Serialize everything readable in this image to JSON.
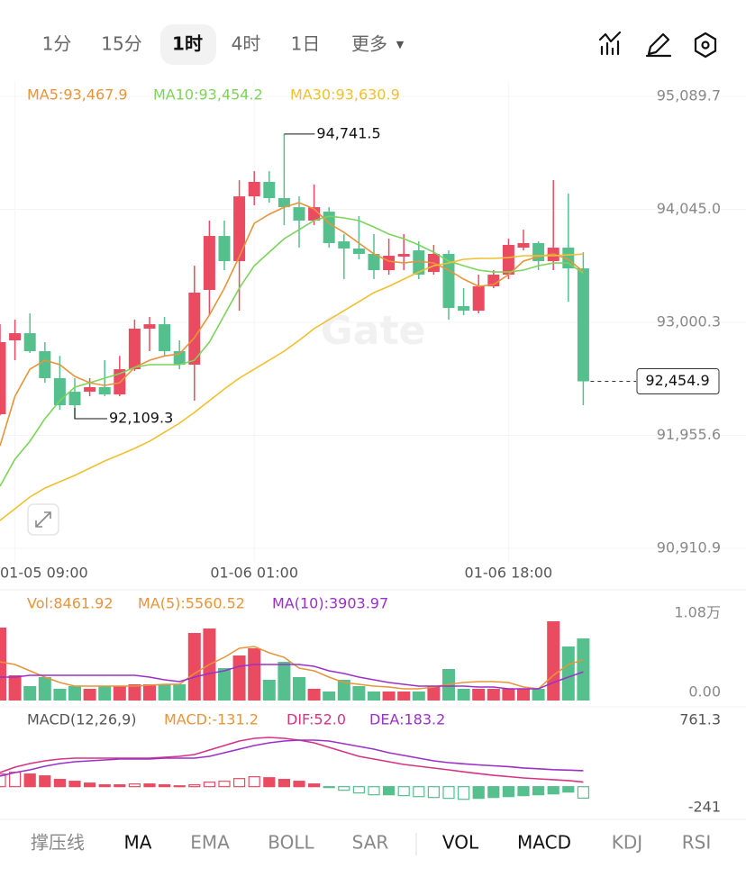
{
  "toolbar": {
    "intervals": [
      "1分",
      "15分",
      "1时",
      "4时",
      "1日"
    ],
    "active": 2,
    "more": "更多"
  },
  "watermark": "Gate",
  "chart_data": [
    {
      "type": "candlestick",
      "up_color": "#ea4b61",
      "down_color": "#55c08e",
      "categories": [
        null,
        "01-05 09:00",
        null,
        null,
        null,
        null,
        null,
        null,
        null,
        null,
        null,
        null,
        null,
        null,
        null,
        null,
        null,
        "01-06 01:00",
        null,
        null,
        null,
        null,
        null,
        null,
        null,
        null,
        null,
        null,
        null,
        null,
        null,
        null,
        null,
        null,
        "01-06 18:00",
        null,
        null,
        null,
        null,
        null
      ],
      "open": [
        92151,
        92834,
        92900,
        92734,
        92484,
        92359,
        92359,
        92401,
        92334,
        92567,
        92942,
        92983,
        92734,
        92609,
        93300,
        93799,
        93566,
        94165,
        94299,
        94149,
        94065,
        93941,
        94024,
        93749,
        93683,
        93633,
        93483,
        93608,
        93666,
        93466,
        93633,
        93150,
        93108,
        93333,
        93441,
        93691,
        93733,
        93566,
        93691,
        93499
      ],
      "high": [
        92983,
        93025,
        93083,
        92817,
        92690,
        92484,
        92484,
        92650,
        92690,
        93025,
        93050,
        93050,
        92834,
        93524,
        93941,
        93941,
        94315,
        94398,
        94398,
        94741.5,
        94165,
        94274,
        94065,
        93816,
        93982,
        93816,
        93774,
        93816,
        93749,
        93716,
        93666,
        93316,
        93441,
        93483,
        93774,
        93857,
        93749,
        94315,
        94190,
        93649
      ],
      "low": [
        92140,
        92650,
        92717,
        92442,
        92193,
        92109.3,
        92317,
        92317,
        92317,
        92550,
        92734,
        92690,
        92567,
        92276,
        93067,
        93483,
        93108,
        94082,
        94107,
        93899,
        93691,
        93899,
        93691,
        93400,
        93583,
        93400,
        93441,
        93483,
        93400,
        93441,
        93025,
        93067,
        93083,
        93316,
        93400,
        93666,
        93483,
        93483,
        93191,
        92234
      ],
      "close": [
        92817,
        92900,
        92734,
        92484,
        92234,
        92234,
        92401,
        92334,
        92567,
        92942,
        92983,
        92734,
        92609,
        93275,
        93799,
        93566,
        94165,
        94299,
        94149,
        94065,
        93941,
        94065,
        93733,
        93683,
        93633,
        93483,
        93616,
        93633,
        93441,
        93633,
        93133,
        93108,
        93333,
        93441,
        93716,
        93733,
        93566,
        93691,
        93499,
        92454.9
      ],
      "ma_series": [
        {
          "name": "MA5:93,467.9",
          "color": "#e8943a",
          "values": [
            91860,
            92317,
            92567,
            92650,
            92609,
            92501,
            92442,
            92417,
            92442,
            92584,
            92650,
            92690,
            92709,
            92858,
            93067,
            93316,
            93608,
            93916,
            93999,
            94065,
            94107,
            94049,
            93916,
            93832,
            93733,
            93633,
            93566,
            93549,
            93566,
            93549,
            93483,
            93400,
            93333,
            93350,
            93441,
            93566,
            93608,
            93633,
            93583,
            93467.9
          ]
        },
        {
          "name": "MA10:93,454.2",
          "color": "#7dd35b",
          "values": [
            91485,
            91735,
            91901,
            92109,
            92276,
            92401,
            92442,
            92484,
            92526,
            92584,
            92609,
            92609,
            92609,
            92650,
            92817,
            93067,
            93316,
            93524,
            93649,
            93774,
            93857,
            93941,
            93982,
            93966,
            93941,
            93882,
            93816,
            93774,
            93716,
            93649,
            93566,
            93524,
            93483,
            93466,
            93466,
            93483,
            93524,
            93549,
            93549,
            93454.2
          ]
        },
        {
          "name": "MA30:93,630.9",
          "color": "#f0c030",
          "values": [
            91169,
            91277,
            91385,
            91468,
            91527,
            91585,
            91652,
            91718,
            91776,
            91835,
            91901,
            91984,
            92068,
            92168,
            92276,
            92384,
            92484,
            92567,
            92650,
            92734,
            92834,
            92942,
            93025,
            93108,
            93191,
            93275,
            93333,
            93400,
            93466,
            93524,
            93549,
            93583,
            93591,
            93591,
            93599,
            93616,
            93616,
            93616,
            93624,
            93630.9
          ]
        }
      ],
      "ylim": [
        90910.9,
        95089.7
      ],
      "yticks": [
        {
          "value": 95089.7,
          "label": "95,089.7"
        },
        {
          "value": 94045.0,
          "label": "94,045.0"
        },
        {
          "value": 93000.3,
          "label": "93,000.3"
        },
        {
          "value": 91955.6,
          "label": "91,955.6"
        },
        {
          "value": 90910.9,
          "label": "90,910.9"
        }
      ],
      "high_label": "94,741.5",
      "low_label": "92,109.3",
      "last_label": "92,454.9"
    },
    {
      "type": "volume",
      "values": [
        9939,
        3436,
        1963,
        3190,
        1595,
        1963,
        1595,
        1963,
        1963,
        2209,
        2209,
        2209,
        2209,
        9203,
        9816,
        4417,
        6135,
        7117,
        2822,
        5276,
        3190,
        1595,
        1227,
        2822,
        1963,
        1227,
        1227,
        1227,
        1227,
        1963,
        4295,
        1595,
        1595,
        1595,
        1595,
        1595,
        1595,
        10800,
        7362,
        8461.92
      ],
      "name": "Vol:8461.92",
      "series": [
        {
          "name": "MA(5):5560.52",
          "color": "#e8943a",
          "values": [
            5276,
            4908,
            4049,
            3190,
            2454,
            1963,
            1963,
            1963,
            1963,
            1963,
            2086,
            2209,
            2209,
            3681,
            4908,
            5890,
            7117,
            7362,
            6503,
            5890,
            4417,
            4049,
            3190,
            2454,
            2209,
            1963,
            1841,
            1595,
            1595,
            1841,
            2209,
            2454,
            2577,
            2577,
            2454,
            1841,
            1595,
            3436,
            4908,
            5560.52
          ]
        },
        {
          "name": "MA(10):3903.97",
          "color": "#9b30c8",
          "values": [
            3190,
            3190,
            3436,
            3436,
            3436,
            3436,
            3436,
            3436,
            3436,
            3436,
            3190,
            2822,
            2577,
            3190,
            3681,
            4049,
            4663,
            4908,
            4908,
            4908,
            4908,
            4663,
            4049,
            3681,
            3190,
            2822,
            2454,
            2209,
            1963,
            1963,
            1963,
            1963,
            1841,
            1841,
            1595,
            1595,
            1595,
            2454,
            3190,
            3903.97
          ]
        }
      ],
      "ylim": [
        0,
        10800
      ],
      "yticks": [
        {
          "value": 10800,
          "label": "1.08万"
        },
        {
          "value": 0,
          "label": "0.00"
        }
      ]
    },
    {
      "type": "macd",
      "title": "MACD(12,26,9)",
      "histogram_name": "MACD:-131.2",
      "histogram": [
        145,
        165,
        145,
        124,
        83,
        62,
        41,
        21,
        21,
        31,
        31,
        21,
        10,
        21,
        52,
        62,
        93,
        114,
        103,
        83,
        62,
        31,
        -10,
        -41,
        -72,
        -93,
        -93,
        -103,
        -114,
        -124,
        -134,
        -145,
        -134,
        -124,
        -114,
        -103,
        -93,
        -83,
        -62,
        -131.2
      ],
      "series": [
        {
          "name": "DIF:52.0",
          "color": "#d63384",
          "values": [
            162,
            224,
            265,
            296,
            317,
            327,
            327,
            327,
            327,
            327,
            327,
            338,
            348,
            369,
            420,
            472,
            524,
            555,
            565,
            555,
            534,
            503,
            451,
            400,
            348,
            317,
            286,
            255,
            234,
            214,
            193,
            170,
            150,
            130,
            115,
            100,
            90,
            80,
            70,
            52.0
          ]
        },
        {
          "name": "DEA:183.2",
          "color": "#9b30c8",
          "values": [
            121,
            162,
            193,
            234,
            265,
            286,
            296,
            307,
            317,
            317,
            317,
            327,
            327,
            327,
            348,
            389,
            431,
            472,
            503,
            524,
            534,
            534,
            524,
            493,
            462,
            431,
            389,
            358,
            327,
            296,
            276,
            262,
            250,
            240,
            230,
            215,
            205,
            195,
            190,
            183.2
          ]
        }
      ],
      "ylim": [
        -241,
        761.3
      ],
      "yticks": [
        761.3,
        -241
      ]
    }
  ],
  "bottom_tabs": {
    "items": [
      "撑压线",
      "MA",
      "EMA",
      "BOLL",
      "SAR",
      "VOL",
      "MACD",
      "KDJ",
      "RSI"
    ],
    "active": [
      1,
      5,
      6
    ]
  }
}
